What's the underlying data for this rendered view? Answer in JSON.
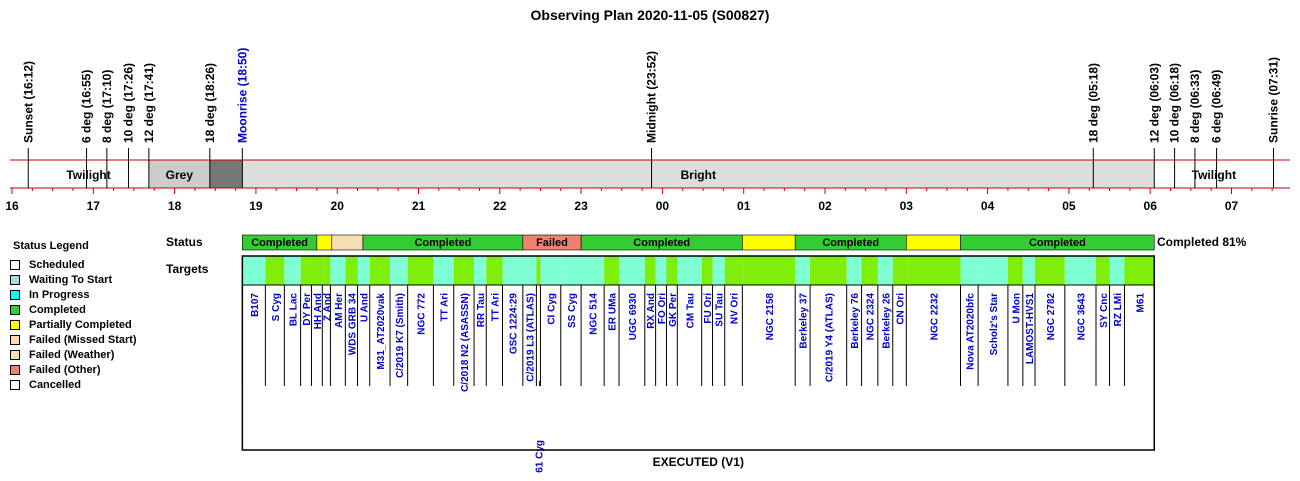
{
  "title": "Observing Plan 2020-11-05 (S00827)",
  "colors": {
    "scheduled": "#ffffff",
    "waiting": "#add8e6",
    "in_progress": "#00ffff",
    "completed": "#33cc33",
    "partial": "#ffff00",
    "failed_missed": "#fcd9b4",
    "failed_weather": "#f5deb3",
    "failed_other": "#f08070",
    "cancelled": "#ffffff",
    "target_green": "#7fee0b",
    "target_cyan": "#7fffd4",
    "grey_band": "#cccccc",
    "dark_band": "#777777",
    "bright_band": "#dddddd",
    "axis_red": "#cc0000",
    "target_text": "#0000cc",
    "moon_text": "#0000cc"
  },
  "chart_data": {
    "type": "timeline",
    "title": "Observing Plan 2020-11-05 (S00827)",
    "time_range": [
      "16:00",
      "07:45"
    ],
    "events": [
      {
        "label": "Sunset (16:12)",
        "time": "16:12"
      },
      {
        "label": "6 deg (16:55)",
        "time": "16:55"
      },
      {
        "label": "8 deg (17:10)",
        "time": "17:10"
      },
      {
        "label": "10 deg (17:26)",
        "time": "17:26"
      },
      {
        "label": "12 deg (17:41)",
        "time": "17:41"
      },
      {
        "label": "18 deg (18:26)",
        "time": "18:26"
      },
      {
        "label": "Moonrise (18:50)",
        "time": "18:50",
        "color": "moon"
      },
      {
        "label": "Midnight (23:52)",
        "time": "23:52"
      },
      {
        "label": "18 deg (05:18)",
        "time": "05:18"
      },
      {
        "label": "12 deg (06:03)",
        "time": "06:03"
      },
      {
        "label": "10 deg (06:18)",
        "time": "06:18"
      },
      {
        "label": "8 deg (06:33)",
        "time": "06:33"
      },
      {
        "label": "6 deg (06:49)",
        "time": "06:49"
      },
      {
        "label": "Sunrise (07:31)",
        "time": "07:31"
      }
    ],
    "periods": [
      {
        "label": "Twilight",
        "start": "16:12",
        "end": "17:41",
        "fill": "none"
      },
      {
        "label": "Grey",
        "start": "17:41",
        "end": "18:26",
        "fill": "grey"
      },
      {
        "label": "",
        "start": "18:26",
        "end": "18:50",
        "fill": "dark"
      },
      {
        "label": "Bright",
        "start": "18:50",
        "end": "06:03",
        "fill": "bright"
      },
      {
        "label": "Twilight",
        "start": "06:03",
        "end": "07:31",
        "fill": "none"
      }
    ],
    "hour_ticks": [
      "16",
      "17",
      "18",
      "19",
      "20",
      "21",
      "22",
      "23",
      "00",
      "01",
      "02",
      "03",
      "04",
      "05",
      "06",
      "07"
    ],
    "status_row_label": "Status",
    "targets_row_label": "Targets",
    "completion_label": "Completed 81%",
    "footer_label": "EXECUTED (V1)",
    "status_blocks": [
      {
        "label": "Completed",
        "start": "18:50",
        "end": "19:45",
        "status": "completed"
      },
      {
        "label": "",
        "start": "19:45",
        "end": "19:56",
        "status": "partial"
      },
      {
        "label": "",
        "start": "19:56",
        "end": "20:19",
        "status": "failed_weather"
      },
      {
        "label": "Completed",
        "start": "20:19",
        "end": "22:17",
        "status": "completed"
      },
      {
        "label": "Failed",
        "start": "22:17",
        "end": "23:00",
        "status": "failed_other"
      },
      {
        "label": "Completed",
        "start": "23:00",
        "end": "00:59",
        "status": "completed"
      },
      {
        "label": "",
        "start": "00:59",
        "end": "01:38",
        "status": "partial"
      },
      {
        "label": "Completed",
        "start": "01:38",
        "end": "03:00",
        "status": "completed"
      },
      {
        "label": "",
        "start": "03:00",
        "end": "03:40",
        "status": "partial"
      },
      {
        "label": "Completed",
        "start": "03:40",
        "end": "06:03",
        "status": "completed"
      }
    ],
    "targets": [
      {
        "name": "B107",
        "start": "18:50",
        "end": "19:07",
        "fill": "cyan",
        "row": 0
      },
      {
        "name": "S Cyg",
        "start": "19:07",
        "end": "19:21",
        "fill": "green",
        "row": 0
      },
      {
        "name": "BL Lac",
        "start": "19:21",
        "end": "19:33",
        "fill": "cyan",
        "row": 0
      },
      {
        "name": "DY Per",
        "start": "19:33",
        "end": "19:41",
        "fill": "green",
        "row": 0
      },
      {
        "name": "HH And",
        "start": "19:41",
        "end": "19:49",
        "fill": "green",
        "row": 0
      },
      {
        "name": "Z And",
        "start": "19:49",
        "end": "19:55",
        "fill": "green",
        "row": 0
      },
      {
        "name": "AM Her",
        "start": "19:55",
        "end": "20:06",
        "fill": "cyan",
        "row": 0
      },
      {
        "name": "WDS GRB 34",
        "start": "20:06",
        "end": "20:15",
        "fill": "green",
        "row": 0
      },
      {
        "name": "U And",
        "start": "20:15",
        "end": "20:24",
        "fill": "cyan",
        "row": 0
      },
      {
        "name": "M31_AT2020vak",
        "start": "20:24",
        "end": "20:39",
        "fill": "green",
        "row": 0
      },
      {
        "name": "C/2019 K7 (Smith)",
        "start": "20:39",
        "end": "20:52",
        "fill": "cyan",
        "row": 0
      },
      {
        "name": "NGC 772",
        "start": "20:52",
        "end": "21:11",
        "fill": "green",
        "row": 0
      },
      {
        "name": "TT Ari",
        "start": "21:11",
        "end": "21:26",
        "fill": "cyan",
        "row": 0
      },
      {
        "name": "C/2018 N2 (ASASSN)",
        "start": "21:26",
        "end": "21:41",
        "fill": "green",
        "row": 0
      },
      {
        "name": "RR Tau",
        "start": "21:41",
        "end": "21:50",
        "fill": "cyan",
        "row": 0
      },
      {
        "name": "TT Ari",
        "start": "21:50",
        "end": "22:02",
        "fill": "green",
        "row": 0
      },
      {
        "name": "GSC 1224:29",
        "start": "22:02",
        "end": "22:17",
        "fill": "cyan",
        "row": 0
      },
      {
        "name": "C/2019 L3 (ATLAS)",
        "start": "22:17",
        "end": "22:27",
        "fill": "cyan",
        "row": 0
      },
      {
        "name": "61 Cyg",
        "start": "22:27",
        "end": "22:30",
        "fill": "green",
        "row": 1
      },
      {
        "name": "CI Cyg",
        "start": "22:30",
        "end": "22:45",
        "fill": "cyan",
        "row": 0
      },
      {
        "name": "SS Cyg",
        "start": "22:45",
        "end": "23:00",
        "fill": "cyan",
        "row": 0
      },
      {
        "name": "NGC 514",
        "start": "23:00",
        "end": "23:17",
        "fill": "cyan",
        "row": 0
      },
      {
        "name": "ER UMa",
        "start": "23:17",
        "end": "23:28",
        "fill": "green",
        "row": 0
      },
      {
        "name": "UGC 6930",
        "start": "23:28",
        "end": "23:47",
        "fill": "cyan",
        "row": 0
      },
      {
        "name": "RX And",
        "start": "23:47",
        "end": "23:55",
        "fill": "green",
        "row": 0
      },
      {
        "name": "FO Ori",
        "start": "23:55",
        "end": "00:03",
        "fill": "cyan",
        "row": 0
      },
      {
        "name": "GK Per",
        "start": "00:03",
        "end": "00:11",
        "fill": "green",
        "row": 0
      },
      {
        "name": "CM Tau",
        "start": "00:11",
        "end": "00:29",
        "fill": "cyan",
        "row": 0
      },
      {
        "name": "FU Ori",
        "start": "00:29",
        "end": "00:37",
        "fill": "green",
        "row": 0
      },
      {
        "name": "SU Tau",
        "start": "00:37",
        "end": "00:46",
        "fill": "cyan",
        "row": 0
      },
      {
        "name": "NV Ori",
        "start": "00:46",
        "end": "00:59",
        "fill": "green",
        "row": 0
      },
      {
        "name": "NGC 2158",
        "start": "00:59",
        "end": "01:38",
        "fill": "green",
        "row": 0
      },
      {
        "name": "Berkeley 37",
        "start": "01:38",
        "end": "01:49",
        "fill": "cyan",
        "row": 0
      },
      {
        "name": "C/2019 Y4 (ATLAS)",
        "start": "01:49",
        "end": "02:16",
        "fill": "green",
        "row": 0
      },
      {
        "name": "Berkeley 76",
        "start": "02:16",
        "end": "02:27",
        "fill": "cyan",
        "row": 0
      },
      {
        "name": "NGC 2324",
        "start": "02:27",
        "end": "02:39",
        "fill": "green",
        "row": 0
      },
      {
        "name": "Berkeley 26",
        "start": "02:39",
        "end": "02:50",
        "fill": "cyan",
        "row": 0
      },
      {
        "name": "CN Ori",
        "start": "02:50",
        "end": "03:00",
        "fill": "green",
        "row": 0
      },
      {
        "name": "NGC 2232",
        "start": "03:00",
        "end": "03:40",
        "fill": "green",
        "row": 0
      },
      {
        "name": "Nova AT2020bfc",
        "start": "03:40",
        "end": "03:53",
        "fill": "cyan",
        "row": 0
      },
      {
        "name": "Scholz's Star",
        "start": "03:53",
        "end": "04:15",
        "fill": "cyan",
        "row": 0
      },
      {
        "name": "U Mon",
        "start": "04:15",
        "end": "04:26",
        "fill": "green",
        "row": 0
      },
      {
        "name": "LAMOST-HVS1",
        "start": "04:26",
        "end": "04:35",
        "fill": "cyan",
        "row": 0
      },
      {
        "name": "NGC 2782",
        "start": "04:35",
        "end": "04:57",
        "fill": "green",
        "row": 0
      },
      {
        "name": "NGC 3643",
        "start": "04:57",
        "end": "05:20",
        "fill": "cyan",
        "row": 0
      },
      {
        "name": "SY Cnc",
        "start": "05:20",
        "end": "05:30",
        "fill": "green",
        "row": 0
      },
      {
        "name": "RZ LMi",
        "start": "05:30",
        "end": "05:41",
        "fill": "cyan",
        "row": 0
      },
      {
        "name": "M61",
        "start": "05:41",
        "end": "06:03",
        "fill": "green",
        "row": 0
      }
    ]
  },
  "legend": {
    "title": "Status Legend",
    "items": [
      {
        "label": "Scheduled",
        "color": "#ffffff"
      },
      {
        "label": "Waiting To Start",
        "color": "#add8e6"
      },
      {
        "label": "In Progress",
        "color": "#00ffff"
      },
      {
        "label": "Completed",
        "color": "#33cc33"
      },
      {
        "label": "Partially Completed",
        "color": "#ffff00"
      },
      {
        "label": "Failed (Missed Start)",
        "color": "#fcd9b4"
      },
      {
        "label": "Failed (Weather)",
        "color": "#f5deb3"
      },
      {
        "label": "Failed (Other)",
        "color": "#f08070"
      },
      {
        "label": "Cancelled",
        "color": "#ffffff"
      }
    ]
  }
}
